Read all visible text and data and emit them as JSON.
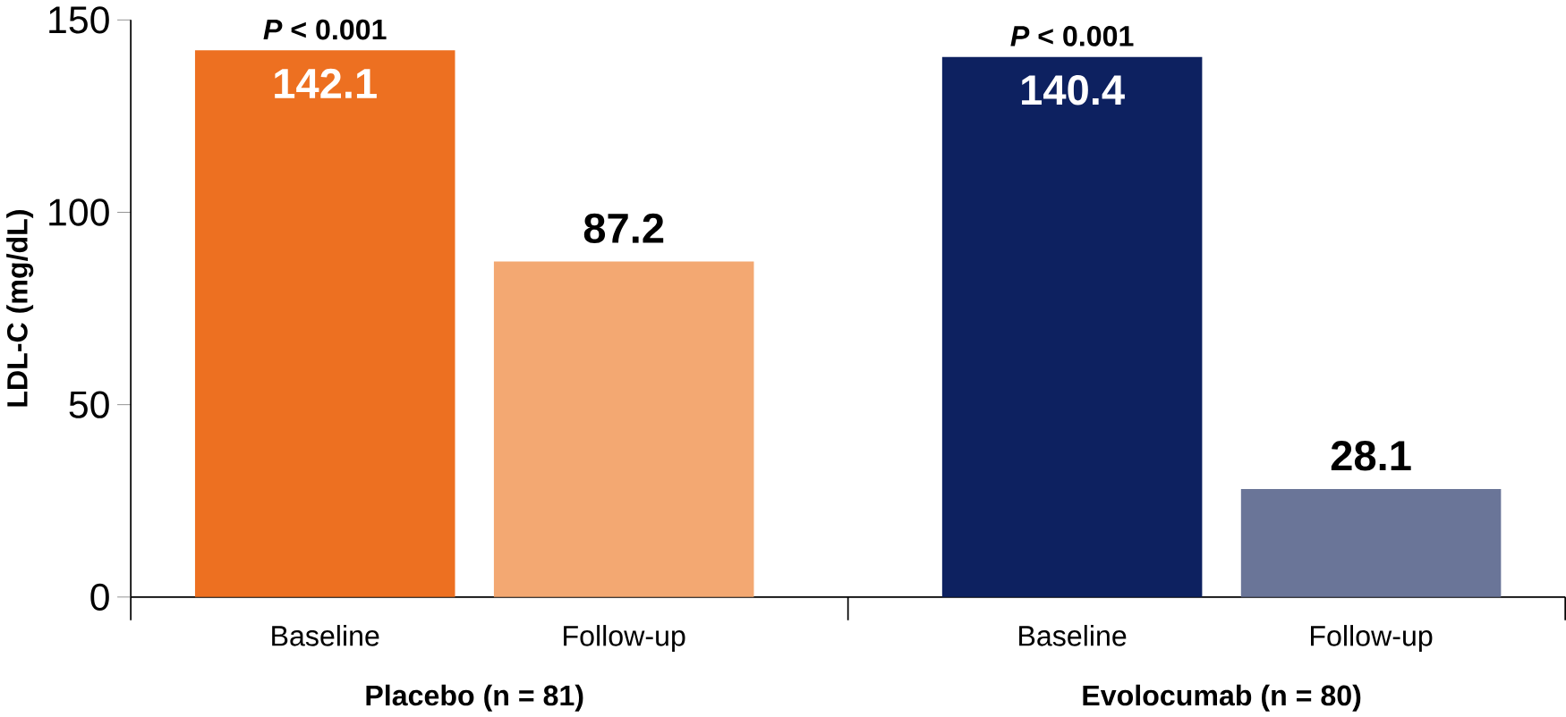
{
  "chart_data": {
    "type": "bar",
    "categories": [
      "Baseline",
      "Follow-up",
      "Baseline",
      "Follow-up"
    ],
    "values": [
      142.1,
      87.2,
      140.4,
      28.1
    ],
    "colors": [
      "#ed7021",
      "#f3a872",
      "#0d2160",
      "#6a7598"
    ],
    "ylabel": "LDL-C (mg/dL)",
    "ylim": [
      0,
      150
    ],
    "yticks": [
      0,
      50,
      100,
      150
    ],
    "data_labels": true,
    "grid": false,
    "annotations": [
      "*P* < 0.001",
      "*P* < 0.001",
      "Placebo (n = 81)",
      "Evolocumab (n = 80)"
    ]
  }
}
